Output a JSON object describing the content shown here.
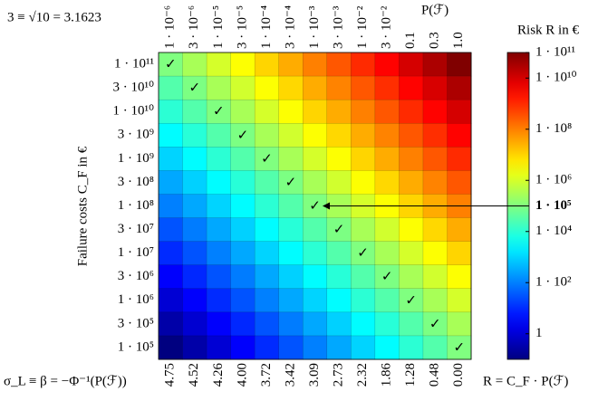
{
  "chart_data": {
    "type": "heatmap",
    "title": "3 ≡ √10 = 3.1623",
    "x_label": "P(ℱ)",
    "y_label": "Failure costs C_F in €",
    "x2_label": "σ_L ≡ β = −Φ⁻¹(P(ℱ))",
    "colorbar_label": "Risk R in €",
    "formula": "R = C_F · P(ℱ)",
    "columns": [
      "1 · 10⁻⁶",
      "3 · 10⁻⁶",
      "1 · 10⁻⁵",
      "3 · 10⁻⁵",
      "1 · 10⁻⁴",
      "3 · 10⁻⁴",
      "1 · 10⁻³",
      "3 · 10⁻³",
      "1 · 10⁻²",
      "3 · 10⁻²",
      "0.1",
      "0.3",
      "1.0"
    ],
    "x2_labels": [
      "4.75",
      "4.52",
      "4.26",
      "4.00",
      "3.72",
      "3.42",
      "3.09",
      "2.73",
      "2.32",
      "1.86",
      "1.28",
      "0.48",
      "0.00"
    ],
    "rows": [
      "1 · 10¹¹",
      "3 · 10¹⁰",
      "1 · 10¹⁰",
      "3 · 10⁹",
      "1 · 10⁹",
      "3 · 10⁸",
      "1 · 10⁸",
      "3 · 10⁷",
      "1 · 10⁷",
      "3 · 10⁶",
      "1 · 10⁶",
      "3 · 10⁵",
      "1 · 10⁵"
    ],
    "values": [
      [
        100000.0,
        300000.0,
        1000000.0,
        3000000.0,
        10000000.0,
        30000000.0,
        100000000.0,
        300000000.0,
        1000000000.0,
        3000000000.0,
        10000000000.0,
        30000000000.0,
        100000000000.0
      ],
      [
        30000.0,
        90000.0,
        300000.0,
        900000.0,
        3000000.0,
        9000000.0,
        30000000.0,
        90000000.0,
        300000000.0,
        900000000.0,
        3000000000.0,
        9000000000.0,
        30000000000.0
      ],
      [
        10000.0,
        30000.0,
        100000.0,
        300000.0,
        1000000.0,
        3000000.0,
        10000000.0,
        30000000.0,
        100000000.0,
        300000000.0,
        1000000000.0,
        3000000000.0,
        10000000000.0
      ],
      [
        3000.0,
        9000.0,
        30000.0,
        90000.0,
        300000.0,
        900000.0,
        3000000.0,
        9000000.0,
        30000000.0,
        90000000.0,
        300000000.0,
        900000000.0,
        3000000000.0
      ],
      [
        1000.0,
        3000.0,
        10000.0,
        30000.0,
        100000.0,
        300000.0,
        1000000.0,
        3000000.0,
        10000000.0,
        30000000.0,
        100000000.0,
        300000000.0,
        1000000000.0
      ],
      [
        300,
        900,
        3000.0,
        9000.0,
        30000.0,
        90000.0,
        300000.0,
        900000.0,
        3000000.0,
        9000000.0,
        30000000.0,
        90000000.0,
        300000000.0
      ],
      [
        100,
        300,
        1000.0,
        3000.0,
        10000.0,
        30000.0,
        100000.0,
        300000.0,
        1000000.0,
        3000000.0,
        10000000.0,
        30000000.0,
        100000000.0
      ],
      [
        30,
        90,
        300,
        900,
        3000.0,
        9000.0,
        30000.0,
        90000.0,
        300000.0,
        900000.0,
        3000000.0,
        9000000.0,
        30000000.0
      ],
      [
        10,
        30,
        100,
        300,
        1000.0,
        3000.0,
        10000.0,
        30000.0,
        100000.0,
        300000.0,
        1000000.0,
        3000000.0,
        10000000.0
      ],
      [
        3,
        9,
        30,
        90,
        300,
        900,
        3000.0,
        9000.0,
        30000.0,
        90000.0,
        300000.0,
        900000.0,
        3000000.0
      ],
      [
        1,
        3,
        10,
        30,
        100,
        300,
        1000.0,
        3000.0,
        10000.0,
        30000.0,
        100000.0,
        300000.0,
        1000000.0
      ],
      [
        0.3,
        0.9,
        3,
        9,
        30,
        90,
        300,
        900,
        3000.0,
        9000.0,
        30000.0,
        90000.0,
        300000.0
      ],
      [
        0.1,
        0.3,
        1,
        3,
        10,
        30,
        100,
        300,
        1000.0,
        3000.0,
        10000.0,
        30000.0,
        100000.0
      ]
    ],
    "cell_labels": [
      [
        "✓",
        null,
        null,
        null,
        null,
        null,
        null,
        null,
        null,
        null,
        null,
        null,
        null
      ],
      [
        null,
        "✓",
        null,
        null,
        null,
        null,
        null,
        null,
        null,
        null,
        null,
        null,
        null
      ],
      [
        null,
        null,
        "✓",
        null,
        null,
        null,
        null,
        null,
        null,
        null,
        null,
        null,
        null
      ],
      [
        null,
        null,
        null,
        "✓",
        null,
        null,
        null,
        null,
        null,
        null,
        null,
        null,
        null
      ],
      [
        null,
        null,
        null,
        null,
        "✓",
        null,
        null,
        null,
        null,
        null,
        null,
        null,
        null
      ],
      [
        null,
        null,
        null,
        null,
        null,
        "✓",
        null,
        null,
        null,
        null,
        null,
        null,
        null
      ],
      [
        null,
        null,
        null,
        null,
        null,
        null,
        "✓",
        null,
        null,
        null,
        null,
        null,
        null
      ],
      [
        null,
        null,
        null,
        null,
        null,
        null,
        null,
        "✓",
        null,
        null,
        null,
        null,
        null
      ],
      [
        null,
        null,
        null,
        null,
        null,
        null,
        null,
        null,
        "✓",
        null,
        null,
        null,
        null
      ],
      [
        null,
        null,
        null,
        null,
        null,
        null,
        null,
        null,
        null,
        "✓",
        null,
        null,
        null
      ],
      [
        null,
        null,
        null,
        null,
        null,
        null,
        null,
        null,
        null,
        null,
        "✓",
        null,
        null
      ],
      [
        null,
        null,
        null,
        null,
        null,
        null,
        null,
        null,
        null,
        null,
        null,
        "✓",
        null
      ],
      [
        null,
        null,
        null,
        null,
        null,
        null,
        null,
        null,
        null,
        null,
        null,
        null,
        "✓"
      ]
    ],
    "colormap": "jet",
    "log_scale": true,
    "clim": [
      0.1,
      100000000000.0
    ],
    "cticks": [
      {
        "value": 100000000000.0,
        "label": "1 · 10¹¹"
      },
      {
        "value": 10000000000.0,
        "label": "1 · 10¹⁰"
      },
      {
        "value": 100000000.0,
        "label": "1 · 10⁸"
      },
      {
        "value": 1000000.0,
        "label": "1 · 10⁶"
      },
      {
        "value": 100000.0,
        "label": "1 · 10⁵",
        "bold": true
      },
      {
        "value": 10000.0,
        "label": "1 · 10⁴"
      },
      {
        "value": 100,
        "label": "1 · 10²"
      },
      {
        "value": 1,
        "label": "1"
      }
    ]
  }
}
